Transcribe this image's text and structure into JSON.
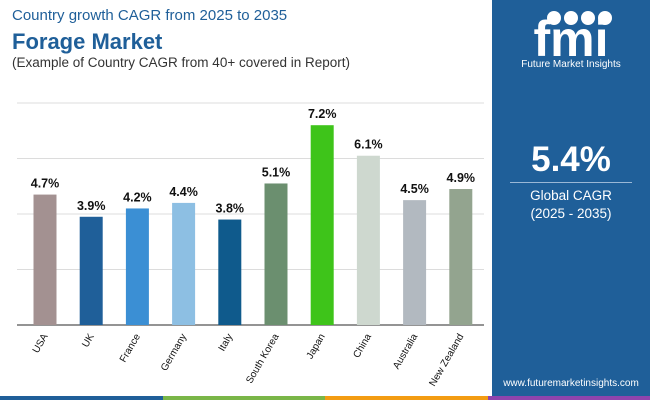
{
  "header": {
    "subtitle": "Country growth CAGR from 2025 to 2035",
    "title": "Forage Market",
    "note": "(Example of Country CAGR from 40+ covered in Report)"
  },
  "chart_data": {
    "type": "bar",
    "title": "Forage Market",
    "subtitle": "Country growth CAGR from 2025 to 2035",
    "categories": [
      "USA",
      "UK",
      "France",
      "Germany",
      "Italy",
      "South Korea",
      "Japan",
      "China",
      "Australia",
      "New Zealand"
    ],
    "values": [
      4.7,
      3.9,
      4.2,
      4.4,
      3.8,
      5.1,
      7.2,
      6.1,
      4.5,
      4.9
    ],
    "labels": [
      "4.7%",
      "3.9%",
      "4.2%",
      "4.4%",
      "3.8%",
      "5.1%",
      "7.2%",
      "6.1%",
      "4.5%",
      "4.9%"
    ],
    "colors": [
      "#a39191",
      "#1f5f99",
      "#3b8fd4",
      "#8dbfe3",
      "#0f5a8c",
      "#6b8f6f",
      "#3ec41a",
      "#ced8cf",
      "#b2b9c0",
      "#93a48f"
    ],
    "ylim": [
      0,
      8
    ],
    "xlabel": "",
    "ylabel": "",
    "grid": true,
    "legend": "none"
  },
  "panel": {
    "logo_text": "fmi",
    "logo_caption": "Future Market Insights",
    "cagr_value": "5.4%",
    "cagr_label": "Global CAGR",
    "cagr_period": "(2025 - 2035)",
    "url": "www.futuremarketinsights.com"
  },
  "footer_colors": [
    "#1f5f99",
    "#7ab648",
    "#f39c12",
    "#8e44ad"
  ]
}
